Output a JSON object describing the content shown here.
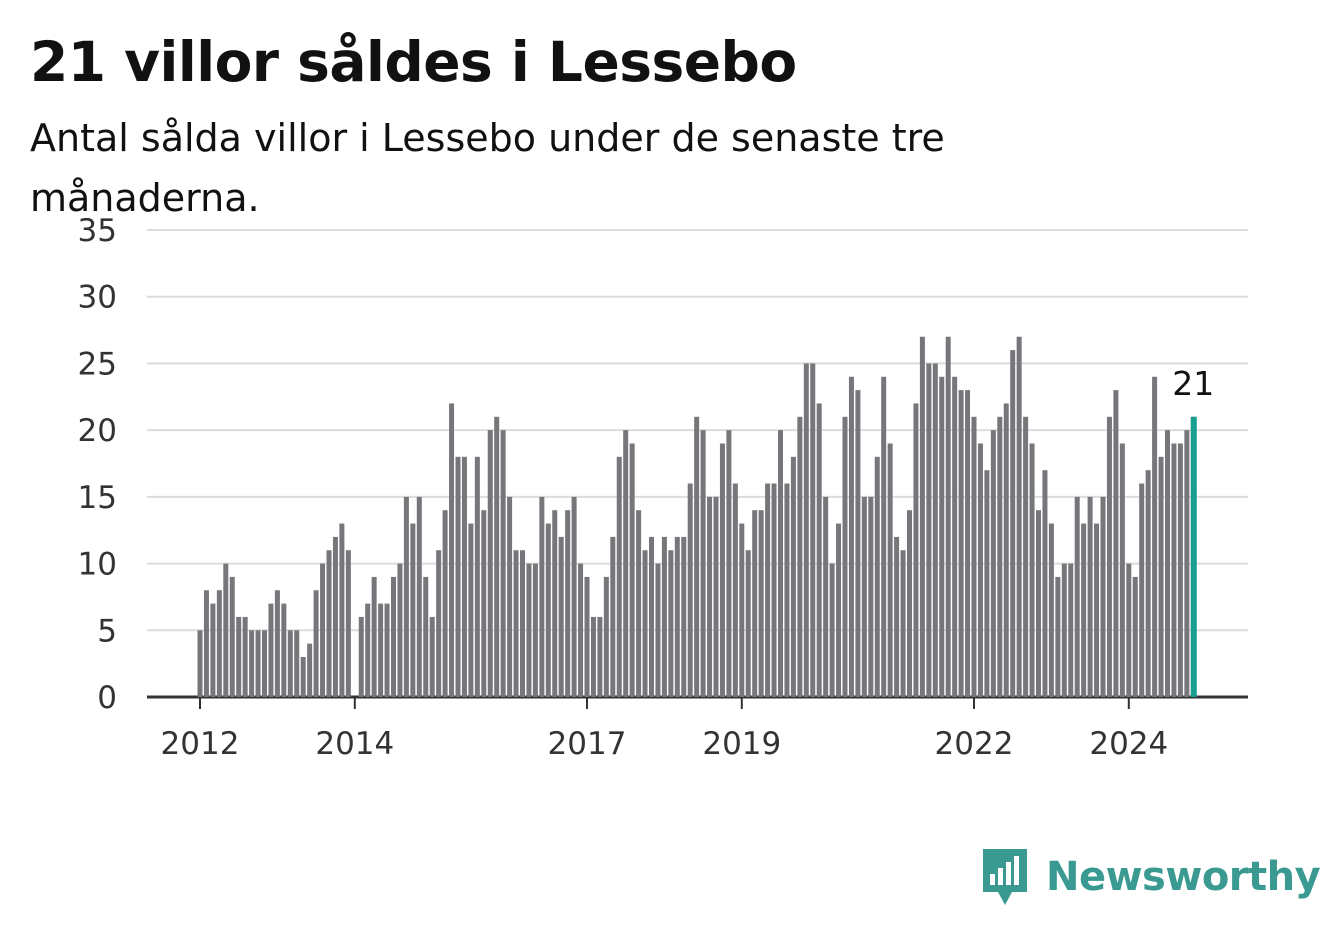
{
  "title": "21 villor såldes i Lessebo",
  "subtitle": "Antal sålda villor i Lessebo under de senaste tre månaderna.",
  "logo_text": "Newsworthy",
  "colors": {
    "bar": "#76767b",
    "highlight": "#1a9e8f",
    "grid": "#dcdcdc",
    "axis": "#333333",
    "brand": "#3a9a92"
  },
  "chart_data": {
    "type": "bar",
    "title": "21 villor såldes i Lessebo",
    "subtitle": "Antal sålda villor i Lessebo under de senaste tre månaderna.",
    "xlabel": "",
    "ylabel": "",
    "ylim": [
      0,
      35
    ],
    "yticks": [
      0,
      5,
      10,
      15,
      20,
      25,
      30,
      35
    ],
    "xticks": [
      {
        "label": "2012",
        "index": 0
      },
      {
        "label": "2014",
        "index": 24
      },
      {
        "label": "2017",
        "index": 60
      },
      {
        "label": "2019",
        "index": 84
      },
      {
        "label": "2022",
        "index": 120
      },
      {
        "label": "2024",
        "index": 144
      }
    ],
    "values": [
      5,
      8,
      7,
      8,
      10,
      9,
      6,
      6,
      5,
      5,
      5,
      7,
      8,
      7,
      5,
      5,
      3,
      4,
      8,
      10,
      11,
      12,
      13,
      11,
      0,
      6,
      7,
      9,
      7,
      7,
      9,
      10,
      15,
      13,
      15,
      9,
      6,
      11,
      14,
      22,
      18,
      18,
      13,
      18,
      14,
      20,
      21,
      20,
      15,
      11,
      11,
      10,
      10,
      15,
      13,
      14,
      12,
      14,
      15,
      10,
      9,
      6,
      6,
      9,
      12,
      18,
      20,
      19,
      14,
      11,
      12,
      10,
      12,
      11,
      12,
      12,
      16,
      21,
      20,
      15,
      15,
      19,
      20,
      16,
      13,
      11,
      14,
      14,
      16,
      16,
      20,
      16,
      18,
      21,
      25,
      25,
      22,
      15,
      10,
      13,
      21,
      24,
      23,
      15,
      15,
      18,
      24,
      19,
      12,
      11,
      14,
      22,
      27,
      25,
      25,
      24,
      27,
      24,
      23,
      23,
      21,
      19,
      17,
      20,
      21,
      22,
      26,
      27,
      21,
      19,
      14,
      17,
      13,
      9,
      10,
      10,
      15,
      13,
      15,
      13,
      15,
      21,
      23,
      19,
      10,
      9,
      16,
      17,
      24,
      18,
      20,
      19,
      19,
      20,
      21
    ],
    "highlight": {
      "index": 154,
      "value": 21,
      "label": "21"
    },
    "grid": true
  }
}
